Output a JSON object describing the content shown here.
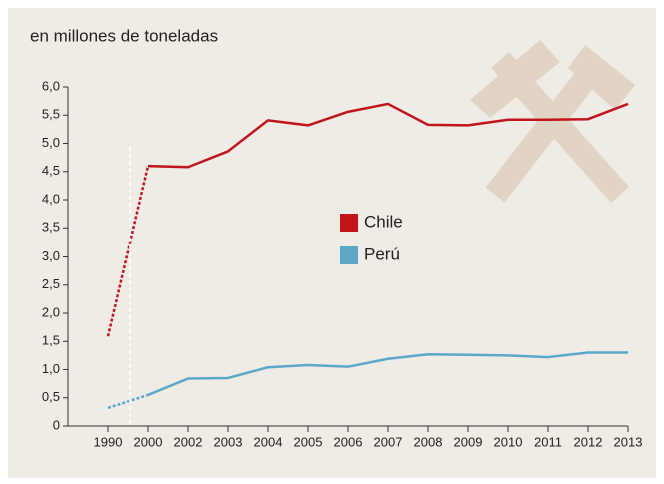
{
  "chart_data": {
    "type": "line",
    "title": "en millones de toneladas",
    "categories": [
      "1990",
      "2000",
      "2002",
      "2003",
      "2004",
      "2005",
      "2006",
      "2007",
      "2008",
      "2009",
      "2010",
      "2011",
      "2012",
      "2013"
    ],
    "series": [
      {
        "name": "Chile",
        "color": "#c0161b",
        "values": [
          1.59,
          4.6,
          4.58,
          4.86,
          5.41,
          5.32,
          5.56,
          5.7,
          5.33,
          5.32,
          5.42,
          5.42,
          5.43,
          5.7
        ]
      },
      {
        "name": "Perú",
        "color": "#5ba8c8",
        "values": [
          0.32,
          0.55,
          0.84,
          0.85,
          1.04,
          1.08,
          1.05,
          1.19,
          1.27,
          1.26,
          1.25,
          1.22,
          1.3,
          1.3
        ]
      }
    ],
    "ylim": [
      0,
      6
    ],
    "yticks": [
      0,
      {
        "value": 0.5,
        "label": "0,5"
      },
      {
        "value": 1,
        "label": "1,0"
      },
      {
        "value": 1.5,
        "label": "1,5"
      },
      {
        "value": 2,
        "label": "2,0"
      },
      {
        "value": 2.5,
        "label": "2,5"
      },
      {
        "value": 3,
        "label": "3,0"
      },
      {
        "value": 3.5,
        "label": "3,5"
      },
      {
        "value": 4,
        "label": "4,0"
      },
      {
        "value": 4.5,
        "label": "4,5"
      },
      {
        "value": 5,
        "label": "5,0"
      },
      {
        "value": 5.5,
        "label": "5,5"
      },
      {
        "value": 6,
        "label": "6,0"
      }
    ]
  }
}
